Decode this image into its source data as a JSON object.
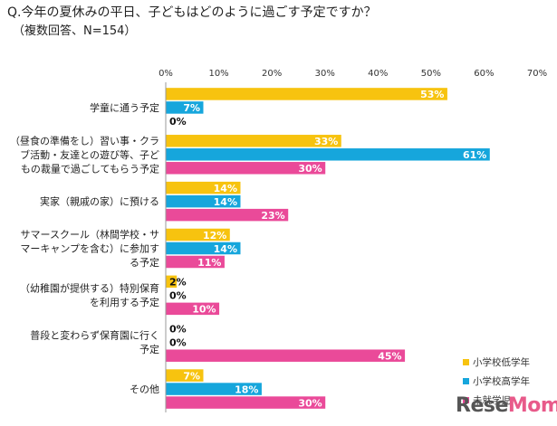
{
  "title": "Q.今年の夏休みの平日、子どもはどのように過ごす予定ですか？",
  "subtitle": "（複数回答、N=154）",
  "watermark": {
    "text_a": "Rese",
    "text_b": "Mom"
  },
  "chart_data": {
    "type": "bar",
    "orientation": "horizontal",
    "xlim": [
      0,
      70
    ],
    "ticks": [
      0,
      10,
      20,
      30,
      40,
      50,
      60,
      70
    ],
    "tick_labels": [
      "0%",
      "10%",
      "20%",
      "30%",
      "40%",
      "50%",
      "60%",
      "70%"
    ],
    "categories": [
      [
        "学童に通う予定"
      ],
      [
        "（昼食の準備をし）習い事・クラ",
        "ブ活動・友達との遊び等、子ど",
        "もの裁量で過ごしてもらう予定"
      ],
      [
        "実家（親戚の家）に預ける"
      ],
      [
        "サマースクール（林間学校・サ",
        "マーキャンプを含む）に参加す",
        "る予定"
      ],
      [
        "（幼稚園が提供する）特別保育",
        "を利用する予定"
      ],
      [
        "普段と変わらず保育園に行く",
        "予定"
      ],
      [
        "その他"
      ]
    ],
    "series": [
      {
        "name": "小学校低学年",
        "color": "#f7c30f",
        "values": [
          53,
          33,
          14,
          12,
          2,
          0,
          7
        ],
        "labels": [
          "53%",
          "33%",
          "14%",
          "12%",
          "2%",
          "0%",
          "7%"
        ]
      },
      {
        "name": "小学校高学年",
        "color": "#16a6dc",
        "values": [
          7,
          61,
          14,
          14,
          0,
          0,
          18
        ],
        "labels": [
          "7%",
          "61%",
          "14%",
          "14%",
          "0%",
          "0%",
          "18%"
        ]
      },
      {
        "name": "未就学児",
        "color": "#ea4a99",
        "values": [
          0,
          30,
          23,
          11,
          10,
          45,
          30
        ],
        "labels": [
          "0%",
          "30%",
          "23%",
          "11%",
          "10%",
          "45%",
          "30%"
        ]
      }
    ]
  }
}
